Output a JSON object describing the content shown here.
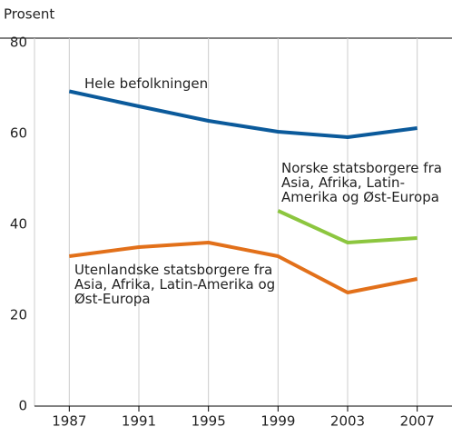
{
  "chart_data": {
    "type": "line",
    "y_axis_label": "Prosent",
    "x": [
      1987,
      1991,
      1995,
      1999,
      2003,
      2007
    ],
    "series": [
      {
        "name": "Hele befolkningen",
        "color": "#0b5a9b",
        "values": [
          69.3,
          66,
          62.8,
          60.4,
          59.2,
          61.2
        ]
      },
      {
        "name": "Norske statsborgere fra Asia, Afrika, Latin-Amerika og Øst-Europa",
        "color": "#8cc63f",
        "values": [
          null,
          null,
          null,
          43,
          36,
          37
        ]
      },
      {
        "name": "Utenlandske statsborgere fra Asia, Afrika, Latin-Amerika og Øst-Europa",
        "color": "#e2701a",
        "values": [
          33,
          35,
          36,
          33,
          25,
          28
        ]
      }
    ],
    "xlim": [
      1985,
      2009
    ],
    "xticks": [
      1987,
      1991,
      1995,
      1999,
      2003,
      2007
    ],
    "ylim": [
      0,
      80
    ],
    "yticks": [
      0,
      20,
      40,
      60,
      80
    ],
    "grid": "x"
  }
}
